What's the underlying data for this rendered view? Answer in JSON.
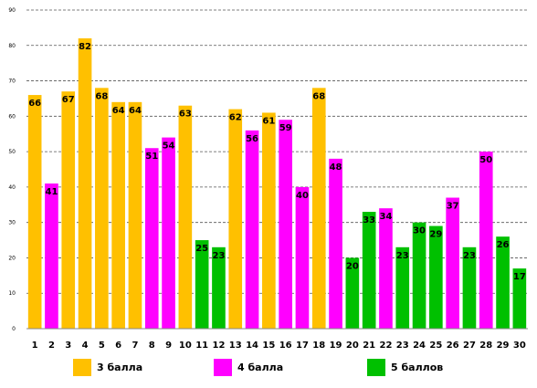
{
  "chart_data": {
    "type": "bar",
    "categories": [
      "1",
      "2",
      "3",
      "4",
      "5",
      "6",
      "7",
      "8",
      "9",
      "10",
      "11",
      "12",
      "13",
      "14",
      "15",
      "16",
      "17",
      "18",
      "19",
      "20",
      "21",
      "22",
      "23",
      "24",
      "25",
      "26",
      "27",
      "28",
      "29",
      "30"
    ],
    "values": [
      66,
      41,
      67,
      82,
      68,
      64,
      64,
      51,
      54,
      63,
      25,
      23,
      62,
      56,
      61,
      59,
      40,
      68,
      48,
      20,
      33,
      34,
      23,
      30,
      29,
      37,
      23,
      50,
      26,
      17
    ],
    "groups": [
      "3 балла",
      "4 балла",
      "3 балла",
      "3 балла",
      "3 балла",
      "3 балла",
      "3 балла",
      "4 балла",
      "4 балла",
      "3 балла",
      "5 баллов",
      "5 баллов",
      "3 балла",
      "4 балла",
      "3 балла",
      "4 балла",
      "4 балла",
      "3 балла",
      "4 балла",
      "5 баллов",
      "5 баллов",
      "4 балла",
      "5 баллов",
      "5 баллов",
      "5 баллов",
      "4 балла",
      "5 баллов",
      "4 балла",
      "5 баллов",
      "5 баллов"
    ],
    "yticks": [
      0,
      10,
      20,
      30,
      40,
      50,
      60,
      70,
      80,
      90
    ],
    "ylim": [
      0,
      90
    ],
    "grid": true,
    "legend_position": "bottom",
    "legend": [
      {
        "label": "3 балла",
        "color": "#FFC000"
      },
      {
        "label": "4 балла",
        "color": "#FF00FF"
      },
      {
        "label": "5 баллов",
        "color": "#00C000"
      }
    ]
  }
}
